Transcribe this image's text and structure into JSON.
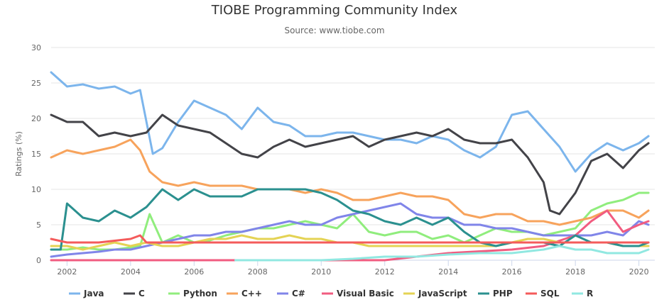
{
  "chart_data": {
    "type": "line",
    "title": "TIOBE Programming Community Index",
    "subtitle": "Source: www.tiobe.com",
    "ylabel": "Ratings (%)",
    "xlabel": "",
    "xlim": [
      2001.5,
      2020.5
    ],
    "ylim": [
      0,
      30
    ],
    "x_ticks": [
      2002,
      2004,
      2006,
      2008,
      2010,
      2012,
      2014,
      2016,
      2018,
      2020
    ],
    "y_ticks": [
      0,
      5,
      10,
      15,
      20,
      25,
      30
    ],
    "grid": "horizontal",
    "legend_position": "bottom",
    "series": [
      {
        "name": "Java",
        "color": "#7cb5ec",
        "x": [
          2001.5,
          2002,
          2002.5,
          2003,
          2003.5,
          2004,
          2004.3,
          2004.7,
          2005,
          2005.5,
          2006,
          2006.5,
          2007,
          2007.5,
          2008,
          2008.5,
          2009,
          2009.5,
          2010,
          2010.5,
          2011,
          2011.5,
          2012,
          2012.5,
          2013,
          2013.5,
          2014,
          2014.5,
          2015,
          2015.5,
          2016,
          2016.5,
          2017,
          2017.5,
          2018,
          2018.5,
          2019,
          2019.5,
          2020,
          2020.3
        ],
        "values": [
          26.5,
          24.5,
          24.8,
          24.2,
          24.5,
          23.5,
          24,
          15,
          15.8,
          19.5,
          22.5,
          21.5,
          20.5,
          18.5,
          21.5,
          19.5,
          19,
          17.5,
          17.5,
          18,
          18,
          17.5,
          17,
          17,
          16.5,
          17.5,
          17,
          15.5,
          14.5,
          16,
          20.5,
          21,
          18.5,
          16,
          12.5,
          15,
          16.5,
          15.5,
          16.5,
          17.5
        ]
      },
      {
        "name": "C",
        "color": "#434348",
        "x": [
          2001.5,
          2002,
          2002.5,
          2003,
          2003.5,
          2004,
          2004.5,
          2005,
          2005.5,
          2006,
          2006.5,
          2007,
          2007.5,
          2008,
          2008.5,
          2009,
          2009.5,
          2010,
          2010.5,
          2011,
          2011.5,
          2012,
          2012.5,
          2013,
          2013.5,
          2014,
          2014.5,
          2015,
          2015.5,
          2016,
          2016.5,
          2017,
          2017.2,
          2017.5,
          2018,
          2018.5,
          2019,
          2019.5,
          2020,
          2020.3
        ],
        "values": [
          20.5,
          19.5,
          19.5,
          17.5,
          18,
          17.5,
          18,
          20.5,
          19,
          18.5,
          18,
          16.5,
          15,
          14.5,
          16,
          17,
          16,
          16.5,
          17,
          17.5,
          16,
          17,
          17.5,
          18,
          17.5,
          18.5,
          17,
          16.5,
          16.5,
          17,
          14.5,
          11,
          7,
          6.5,
          9.5,
          14,
          15,
          13,
          15.5,
          16.5
        ]
      },
      {
        "name": "Python",
        "color": "#90ed7d",
        "x": [
          2001.5,
          2002,
          2002.5,
          2003,
          2003.5,
          2004,
          2004.3,
          2004.6,
          2005,
          2005.5,
          2006,
          2006.5,
          2007,
          2007.5,
          2008,
          2008.5,
          2009,
          2009.5,
          2010,
          2010.5,
          2011,
          2011.5,
          2012,
          2012.5,
          2013,
          2013.5,
          2014,
          2014.5,
          2015,
          2015.5,
          2016,
          2016.5,
          2017,
          2017.5,
          2018,
          2018.5,
          2019,
          2019.5,
          2020,
          2020.3
        ],
        "values": [
          1.5,
          1.5,
          1.8,
          1.5,
          1.5,
          1.8,
          2,
          6.5,
          2.5,
          3.5,
          2.5,
          2.8,
          3.5,
          4,
          4.5,
          4.5,
          5,
          5.5,
          5,
          4.5,
          6.5,
          4,
          3.5,
          4,
          4,
          3,
          3.5,
          2.5,
          3.5,
          4.5,
          4,
          4,
          3.5,
          4,
          4.5,
          7,
          8,
          8.5,
          9.5,
          9.5
        ]
      },
      {
        "name": "C++",
        "color": "#f7a35c",
        "x": [
          2001.5,
          2002,
          2002.5,
          2003,
          2003.5,
          2004,
          2004.3,
          2004.6,
          2005,
          2005.5,
          2006,
          2006.5,
          2007,
          2007.5,
          2008,
          2008.5,
          2009,
          2009.5,
          2010,
          2010.5,
          2011,
          2011.5,
          2012,
          2012.5,
          2013,
          2013.5,
          2014,
          2014.5,
          2015,
          2015.5,
          2016,
          2016.5,
          2017,
          2017.5,
          2018,
          2018.5,
          2019,
          2019.5,
          2020,
          2020.3
        ],
        "values": [
          14.5,
          15.5,
          15,
          15.5,
          16,
          17,
          15.5,
          12.5,
          11,
          10.5,
          11,
          10.5,
          10.5,
          10.5,
          10,
          10,
          10,
          9.5,
          10,
          9.5,
          8.5,
          8.5,
          9,
          9.5,
          9,
          9,
          8.5,
          6.5,
          6,
          6.5,
          6.5,
          5.5,
          5.5,
          5,
          5.5,
          6,
          7,
          7,
          6,
          7
        ]
      },
      {
        "name": "C#",
        "color": "#8085e9",
        "x": [
          2001.5,
          2002,
          2002.5,
          2003,
          2003.5,
          2004,
          2004.5,
          2005,
          2005.5,
          2006,
          2006.5,
          2007,
          2007.5,
          2008,
          2008.5,
          2009,
          2009.5,
          2010,
          2010.5,
          2011,
          2011.5,
          2012,
          2012.5,
          2013,
          2013.5,
          2014,
          2014.5,
          2015,
          2015.5,
          2016,
          2016.5,
          2017,
          2017.5,
          2018,
          2018.5,
          2019,
          2019.5,
          2020,
          2020.3
        ],
        "values": [
          0.5,
          0.8,
          1,
          1.2,
          1.5,
          1.5,
          2,
          2.5,
          3,
          3.5,
          3.5,
          4,
          4,
          4.5,
          5,
          5.5,
          5,
          5,
          6,
          6.5,
          7,
          7.5,
          8,
          6.5,
          6,
          6,
          5,
          5,
          4.5,
          4.5,
          4,
          3.5,
          3.5,
          3.5,
          3.5,
          4,
          3.5,
          5.5,
          5
        ]
      },
      {
        "name": "Visual Basic",
        "color": "#f15c80",
        "x": [
          2001.5,
          2002,
          2004,
          2006,
          2008,
          2010,
          2012,
          2014,
          2016,
          2017,
          2018,
          2018.5,
          2019,
          2019.5,
          2020,
          2020.3
        ],
        "values": [
          0,
          0,
          0,
          0,
          0,
          0,
          0,
          1,
          1.5,
          2,
          3.5,
          5.5,
          7,
          4,
          5,
          5.5
        ]
      },
      {
        "name": "JavaScript",
        "color": "#e4d354",
        "x": [
          2001.5,
          2002,
          2002.5,
          2003,
          2003.5,
          2004,
          2004.5,
          2005,
          2005.5,
          2006,
          2006.5,
          2007,
          2007.5,
          2008,
          2008.5,
          2009,
          2009.5,
          2010,
          2010.5,
          2011,
          2011.5,
          2012,
          2012.5,
          2013,
          2013.5,
          2014,
          2014.5,
          2015,
          2015.5,
          2016,
          2016.5,
          2017,
          2017.5,
          2018,
          2018.5,
          2019,
          2019.5,
          2020,
          2020.3
        ],
        "values": [
          2,
          2,
          1.5,
          2,
          2.5,
          2,
          2.5,
          2,
          2,
          2.5,
          3,
          3,
          3.5,
          3,
          3,
          3.5,
          3,
          3,
          2.5,
          2.5,
          2,
          2,
          2,
          2,
          2,
          2,
          2,
          2,
          2,
          2.5,
          3,
          3,
          2.5,
          2.5,
          2.5,
          2.5,
          2,
          2,
          2
        ]
      },
      {
        "name": "PHP",
        "color": "#2b908f",
        "x": [
          2001.5,
          2001.8,
          2002,
          2002.5,
          2003,
          2003.5,
          2004,
          2004.5,
          2005,
          2005.5,
          2006,
          2006.5,
          2007,
          2007.5,
          2008,
          2008.5,
          2009,
          2009.5,
          2010,
          2010.5,
          2011,
          2011.5,
          2012,
          2012.5,
          2013,
          2013.5,
          2014,
          2014.5,
          2015,
          2015.5,
          2016,
          2016.5,
          2017,
          2017.5,
          2018,
          2018.5,
          2019,
          2019.5,
          2020,
          2020.3
        ],
        "values": [
          1.5,
          1.5,
          8,
          6,
          5.5,
          7,
          6,
          7.5,
          10,
          8.5,
          10,
          9,
          9,
          9,
          10,
          10,
          10,
          10,
          9.5,
          8.5,
          7,
          6.5,
          5.5,
          5,
          6,
          5,
          6,
          4,
          2.5,
          2,
          2.5,
          2.5,
          2.5,
          2,
          3.5,
          2.5,
          2.5,
          2,
          2,
          2.5
        ]
      },
      {
        "name": "SQL",
        "color": "#f45b5b",
        "x": [
          2001.5,
          2002,
          2003,
          2004,
          2004.3,
          2004.5,
          2020.2,
          2020.3
        ],
        "values": [
          3,
          2.5,
          2.5,
          3,
          3.5,
          2.5,
          2.5,
          2.5
        ]
      },
      {
        "name": "R",
        "color": "#91e8e1",
        "x": [
          2007.3,
          2008,
          2010,
          2011,
          2012,
          2013,
          2014,
          2015,
          2016,
          2017,
          2017.5,
          2018,
          2018.5,
          2019,
          2019.5,
          2020,
          2020.3
        ],
        "values": [
          0,
          0,
          0,
          0.2,
          0.5,
          0.5,
          0.8,
          1,
          1,
          1.5,
          2,
          1.5,
          1.5,
          1,
          1,
          1,
          1.5
        ]
      }
    ]
  }
}
